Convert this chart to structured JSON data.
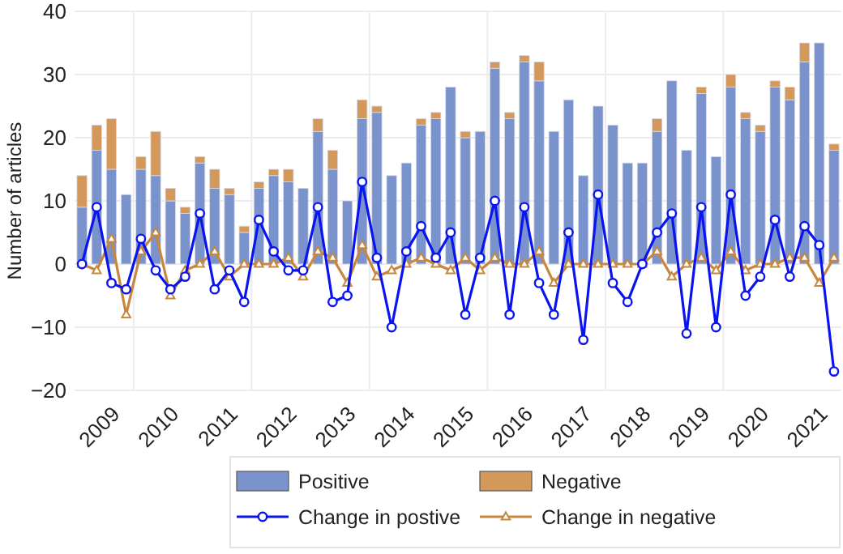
{
  "chart_data": {
    "type": "bar",
    "stacked": true,
    "ylabel": "Number of articles",
    "x": [
      2009.125,
      2009.375,
      2009.625,
      2009.875,
      2010.125,
      2010.375,
      2010.625,
      2010.875,
      2011.125,
      2011.375,
      2011.625,
      2011.875,
      2012.125,
      2012.375,
      2012.625,
      2012.875,
      2013.125,
      2013.375,
      2013.625,
      2013.875,
      2014.125,
      2014.375,
      2014.625,
      2014.875,
      2015.125,
      2015.375,
      2015.625,
      2015.875,
      2016.125,
      2016.375,
      2016.625,
      2016.875,
      2017.125,
      2017.375,
      2017.625,
      2017.875,
      2018.125,
      2018.375,
      2018.625,
      2018.875,
      2019.125,
      2019.375,
      2019.625,
      2019.875,
      2020.125,
      2020.375,
      2020.625,
      2020.875,
      2021.125,
      2021.375,
      2021.625,
      2021.875
    ],
    "series": [
      {
        "name": "Positive",
        "color": "#7b93cc",
        "values": [
          9,
          18,
          15,
          11,
          15,
          14,
          10,
          8,
          16,
          12,
          11,
          5,
          12,
          14,
          13,
          12,
          21,
          15,
          10,
          23,
          24,
          14,
          16,
          22,
          23,
          28,
          20,
          21,
          31,
          23,
          32,
          29,
          21,
          26,
          14,
          25,
          22,
          16,
          16,
          21,
          29,
          18,
          27,
          17,
          28,
          23,
          21,
          28,
          26,
          32,
          35,
          18
        ]
      },
      {
        "name": "Negative",
        "color": "#d4995a",
        "values": [
          5,
          4,
          8,
          0,
          2,
          7,
          2,
          1,
          1,
          3,
          1,
          1,
          1,
          1,
          2,
          0,
          2,
          3,
          0,
          3,
          1,
          0,
          0,
          1,
          1,
          0,
          1,
          0,
          1,
          1,
          1,
          3,
          0,
          0,
          0,
          0,
          0,
          0,
          0,
          2,
          0,
          0,
          1,
          0,
          2,
          1,
          1,
          1,
          2,
          3,
          0,
          1
        ]
      },
      {
        "name": "Change in postive",
        "type": "line",
        "color": "#0a14f0",
        "marker": "circle",
        "values": [
          0,
          9,
          -3,
          -4,
          4,
          -1,
          -4,
          -2,
          8,
          -4,
          -1,
          -6,
          7,
          2,
          -1,
          -1,
          9,
          -6,
          -5,
          13,
          1,
          -10,
          2,
          6,
          1,
          5,
          -8,
          1,
          10,
          -8,
          9,
          -3,
          -8,
          5,
          -12,
          11,
          -3,
          -6,
          0,
          5,
          8,
          -11,
          9,
          -10,
          11,
          -5,
          -2,
          7,
          -2,
          6,
          3,
          -17
        ]
      },
      {
        "name": "Change in negative",
        "type": "line",
        "color": "#c8873c",
        "marker": "triangle",
        "values": [
          0,
          -1,
          4,
          -8,
          2,
          5,
          -5,
          -1,
          0,
          2,
          -2,
          0,
          0,
          0,
          1,
          -2,
          2,
          1,
          -3,
          3,
          -2,
          -1,
          0,
          1,
          0,
          -1,
          1,
          -1,
          1,
          0,
          0,
          2,
          -3,
          0,
          0,
          0,
          0,
          0,
          0,
          2,
          -2,
          0,
          1,
          -1,
          2,
          -1,
          0,
          0,
          1,
          1,
          -3,
          1
        ]
      }
    ],
    "xlim": [
      2009,
      2022
    ],
    "xticks": [
      {
        "value": 2009.5,
        "label": "2009"
      },
      {
        "value": 2010,
        "label": null
      },
      {
        "value": 2010.5,
        "label": "2010"
      },
      {
        "value": 2011.5,
        "label": "2011"
      },
      {
        "value": 2012,
        "label": null
      },
      {
        "value": 2012.5,
        "label": "2012"
      },
      {
        "value": 2013.5,
        "label": "2013"
      },
      {
        "value": 2014,
        "label": null
      },
      {
        "value": 2014.5,
        "label": "2014"
      },
      {
        "value": 2015.5,
        "label": "2015"
      },
      {
        "value": 2016,
        "label": null
      },
      {
        "value": 2016.5,
        "label": "2016"
      },
      {
        "value": 2017.5,
        "label": "2017"
      },
      {
        "value": 2018,
        "label": null
      },
      {
        "value": 2018.5,
        "label": "2018"
      },
      {
        "value": 2019.5,
        "label": "2019"
      },
      {
        "value": 2020,
        "label": null
      },
      {
        "value": 2020.5,
        "label": "2020"
      },
      {
        "value": 2021.5,
        "label": "2021"
      }
    ],
    "ylim": [
      -20,
      40
    ],
    "yticks": [
      -20,
      -10,
      0,
      10,
      20,
      30,
      40
    ],
    "grid": true,
    "legend": "bottom"
  }
}
